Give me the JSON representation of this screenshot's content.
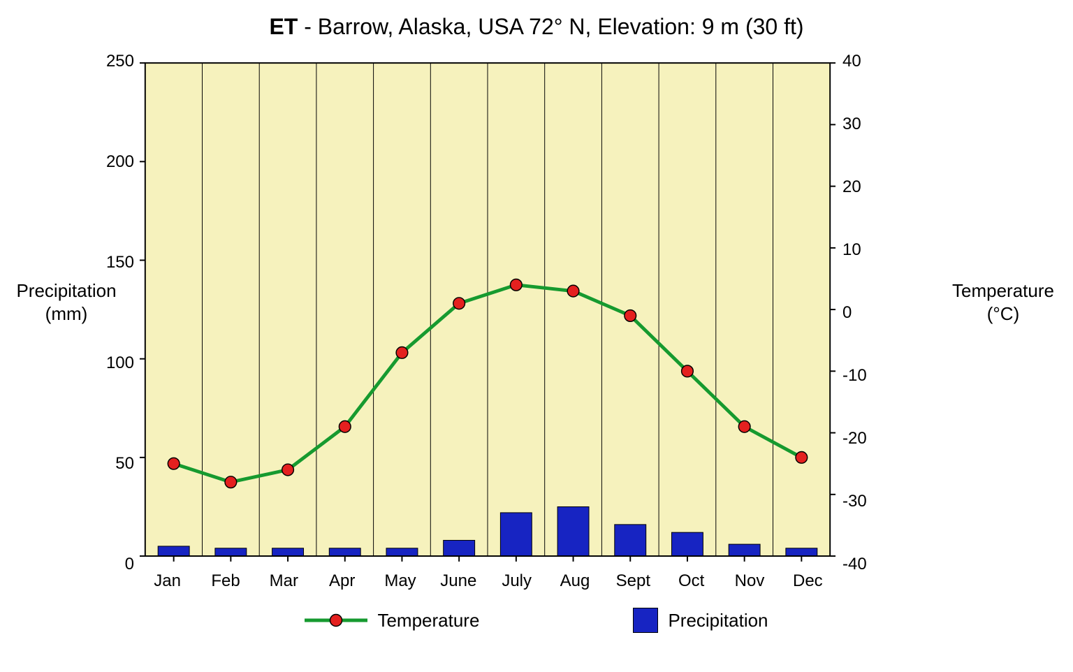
{
  "title_prefix": "ET",
  "title_rest": " - Barrow, Alaska, USA 72° N, Elevation: 9 m (30 ft)",
  "chart": {
    "type": "combo-bar-line",
    "background_color": "#f6f2bd",
    "plot_border_color": "#000000",
    "plot_border_width": 2,
    "grid_vertical_color": "#000000",
    "grid_vertical_width": 1,
    "categories": [
      "Jan",
      "Feb",
      "Mar",
      "Apr",
      "May",
      "June",
      "July",
      "Aug",
      "Sept",
      "Oct",
      "Nov",
      "Dec"
    ],
    "y_left": {
      "label_line1": "Precipitation",
      "label_line2": "(mm)",
      "min": 0,
      "max": 250,
      "ticks": [
        0,
        50,
        100,
        150,
        200,
        250
      ],
      "tick_len": 8,
      "label_fontsize": 26,
      "tick_fontsize": 24
    },
    "y_right": {
      "label_line1": "Temperature",
      "label_line2": "(°C)",
      "min": -40,
      "max": 40,
      "ticks": [
        -40,
        -30,
        -20,
        -10,
        0,
        10,
        20,
        30,
        40
      ],
      "tick_len": 8,
      "label_fontsize": 26,
      "tick_fontsize": 24
    },
    "bars": {
      "name": "Precipitation",
      "color": "#1724c2",
      "stroke": "#000000",
      "stroke_width": 1,
      "bar_width_ratio": 0.55,
      "values": [
        5,
        4,
        4,
        4,
        4,
        8,
        22,
        25,
        16,
        12,
        6,
        4
      ]
    },
    "line": {
      "name": "Temperature",
      "line_color": "#169a2f",
      "line_width": 5,
      "marker_fill": "#e4201f",
      "marker_stroke": "#000000",
      "marker_stroke_width": 1.5,
      "marker_radius": 8.5,
      "values": [
        -25,
        -28,
        -26,
        -19,
        -7,
        1,
        4,
        3,
        -1,
        -10,
        -19,
        -24
      ]
    },
    "xaxis_fontsize": 24,
    "title_fontsize": 32,
    "legend": {
      "temperature_label": "Temperature",
      "precipitation_label": "Precipitation",
      "fontsize": 26
    }
  }
}
